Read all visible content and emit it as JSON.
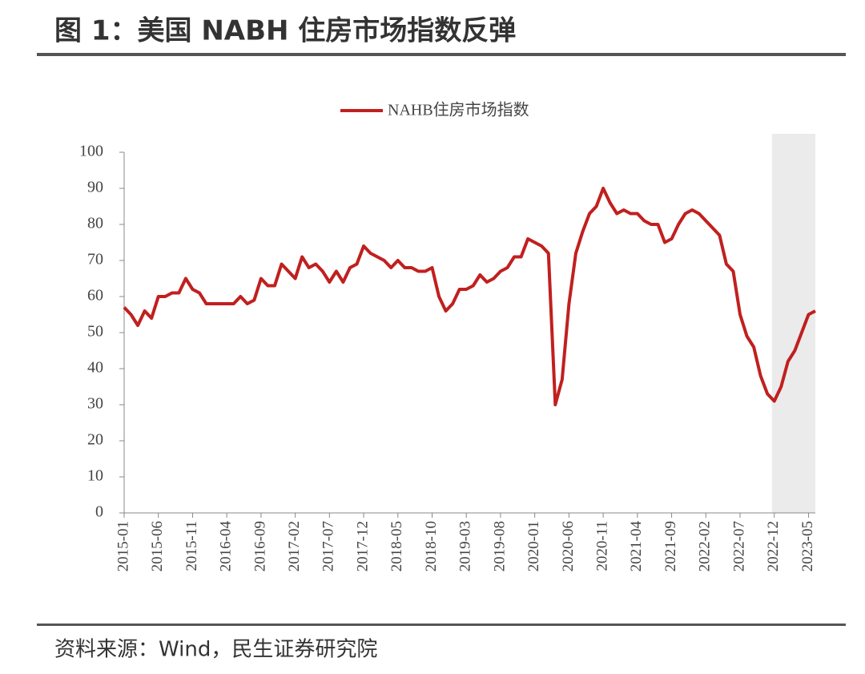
{
  "header": {
    "title": "图 1：美国 NABH 住房市场指数反弹"
  },
  "source": "资料来源：Wind，民生证券研究院",
  "chart_data": {
    "type": "line",
    "categories": [
      "2015-01",
      null,
      null,
      null,
      null,
      "2015-06",
      null,
      null,
      null,
      null,
      "2015-11",
      null,
      null,
      null,
      null,
      "2016-04",
      null,
      null,
      null,
      null,
      "2016-09",
      null,
      null,
      null,
      null,
      "2017-02",
      null,
      null,
      null,
      null,
      "2017-07",
      null,
      null,
      null,
      null,
      "2017-12",
      null,
      null,
      null,
      null,
      "2018-05",
      null,
      null,
      null,
      null,
      "2018-10",
      null,
      null,
      null,
      null,
      "2019-03",
      null,
      null,
      null,
      null,
      "2019-08",
      null,
      null,
      null,
      null,
      "2020-01",
      null,
      null,
      null,
      null,
      "2020-06",
      null,
      null,
      null,
      null,
      "2020-11",
      null,
      null,
      null,
      null,
      "2021-04",
      null,
      null,
      null,
      null,
      "2021-09",
      null,
      null,
      null,
      null,
      "2022-02",
      null,
      null,
      null,
      null,
      "2022-07",
      null,
      null,
      null,
      null,
      "2022-12",
      null,
      null,
      null,
      null,
      "2023-05",
      null
    ],
    "series": [
      {
        "name": "NAHB住房市场指数",
        "color": "#c0201f",
        "values": [
          57,
          55,
          52,
          56,
          54,
          60,
          60,
          61,
          61,
          65,
          62,
          61,
          58,
          58,
          58,
          58,
          58,
          60,
          58,
          59,
          65,
          63,
          63,
          69,
          67,
          65,
          71,
          68,
          69,
          67,
          64,
          67,
          64,
          68,
          69,
          74,
          72,
          71,
          70,
          68,
          70,
          68,
          68,
          67,
          67,
          68,
          60,
          56,
          58,
          62,
          62,
          63,
          66,
          64,
          65,
          67,
          68,
          71,
          71,
          76,
          75,
          74,
          72,
          30,
          37,
          58,
          72,
          78,
          83,
          85,
          90,
          86,
          83,
          84,
          83,
          83,
          81,
          80,
          80,
          75,
          76,
          80,
          83,
          84,
          83,
          81,
          79,
          77,
          69,
          67,
          55,
          49,
          46,
          38,
          33,
          31,
          35,
          42,
          45,
          50,
          55,
          56
        ]
      }
    ],
    "ylim": [
      0,
      100
    ],
    "yticks": [
      0,
      10,
      20,
      30,
      40,
      50,
      60,
      70,
      80,
      90,
      100
    ],
    "shade_from": "2022-12",
    "shade_color": "#ebebeb",
    "legend": "top"
  }
}
